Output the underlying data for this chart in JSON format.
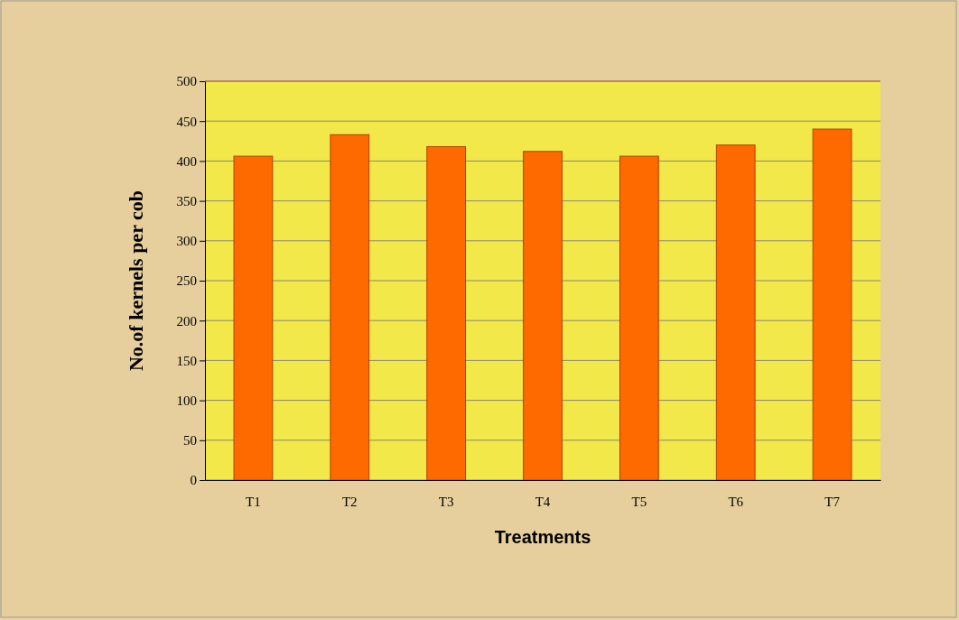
{
  "chart_data": {
    "type": "bar",
    "xlabel": "Treatments",
    "ylabel": "No.of kernels per cob",
    "categories": [
      "T1",
      "T2",
      "T3",
      "T4",
      "T5",
      "T6",
      "T7"
    ],
    "values": [
      406,
      433,
      418,
      412,
      406,
      420,
      440
    ],
    "color": "#ff6a00",
    "ylim": [
      0,
      500
    ],
    "yticks": [
      0,
      50,
      100,
      150,
      200,
      250,
      300,
      350,
      400,
      450,
      500
    ],
    "grid": "y"
  }
}
